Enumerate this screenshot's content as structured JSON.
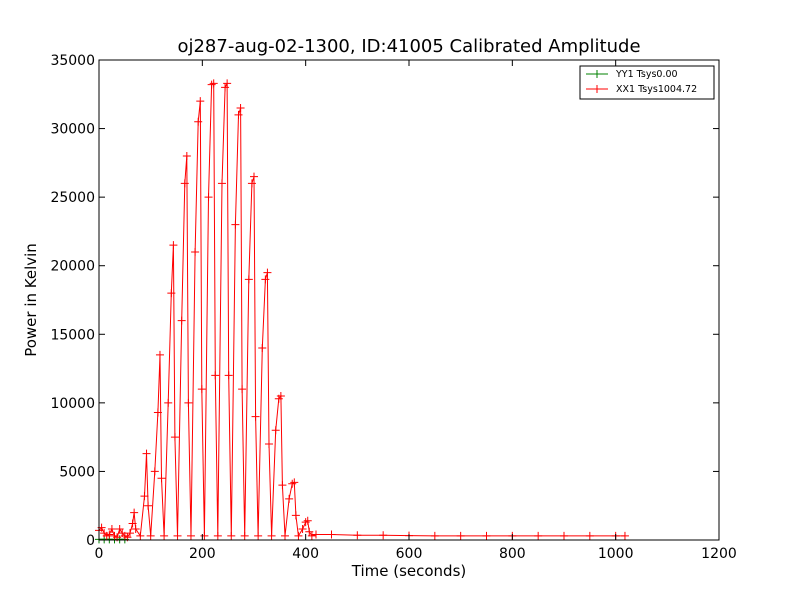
{
  "chart_data": {
    "type": "line",
    "title": "oj287-aug-02-1300, ID:41005 Calibrated Amplitude",
    "xlabel": "Time (seconds)",
    "ylabel": "Power in Kelvin",
    "xlim": [
      0,
      1200
    ],
    "ylim": [
      0,
      35000
    ],
    "xticks": [
      "0",
      "200",
      "400",
      "600",
      "800",
      "1000",
      "1200"
    ],
    "yticks": [
      "0",
      "5000",
      "10000",
      "15000",
      "20000",
      "25000",
      "30000",
      "35000"
    ],
    "grid": false,
    "marker": "+",
    "legend_position": "top-right",
    "series": [
      {
        "name": "YY1 Tsys0.00",
        "color": "#008000",
        "x": [
          0,
          10,
          20,
          30,
          40,
          50
        ],
        "y": [
          50,
          50,
          50,
          50,
          50,
          50
        ]
      },
      {
        "name": "XX1 Tsys1004.72",
        "color": "#ff0000",
        "x": [
          0,
          5,
          10,
          15,
          20,
          25,
          30,
          35,
          40,
          45,
          50,
          55,
          60,
          65,
          68,
          71,
          80,
          88,
          92,
          95,
          100,
          108,
          114,
          118,
          121,
          126,
          134,
          140,
          144,
          147,
          152,
          160,
          166,
          170,
          173,
          178,
          186,
          192,
          196,
          199,
          204,
          212,
          218,
          222,
          225,
          230,
          238,
          244,
          248,
          251,
          256,
          264,
          270,
          274,
          277,
          282,
          290,
          296,
          300,
          303,
          308,
          316,
          322,
          326,
          329,
          334,
          342,
          348,
          352,
          355,
          360,
          368,
          374,
          378,
          381,
          386,
          394,
          400,
          404,
          407,
          412,
          420,
          450,
          500,
          550,
          600,
          650,
          700,
          750,
          800,
          850,
          900,
          950,
          1000,
          1018
        ],
        "y": [
          700,
          900,
          500,
          300,
          400,
          800,
          300,
          200,
          800,
          500,
          300,
          200,
          500,
          1200,
          2000,
          800,
          300,
          3200,
          6300,
          2500,
          300,
          5000,
          9300,
          13500,
          4500,
          300,
          10000,
          18000,
          21500,
          7500,
          300,
          16000,
          26000,
          28000,
          10000,
          300,
          21000,
          30500,
          32000,
          11000,
          300,
          25000,
          33200,
          33300,
          12000,
          300,
          26000,
          33000,
          33300,
          12000,
          300,
          23000,
          31000,
          31500,
          11000,
          300,
          19000,
          26000,
          26500,
          9000,
          300,
          14000,
          19000,
          19500,
          7000,
          300,
          8000,
          10300,
          10500,
          4000,
          300,
          3000,
          4100,
          4200,
          1800,
          300,
          800,
          1300,
          1400,
          600,
          300,
          400,
          400,
          350,
          350,
          320,
          300,
          300,
          300,
          300,
          300,
          300,
          300,
          300,
          300
        ]
      }
    ]
  }
}
